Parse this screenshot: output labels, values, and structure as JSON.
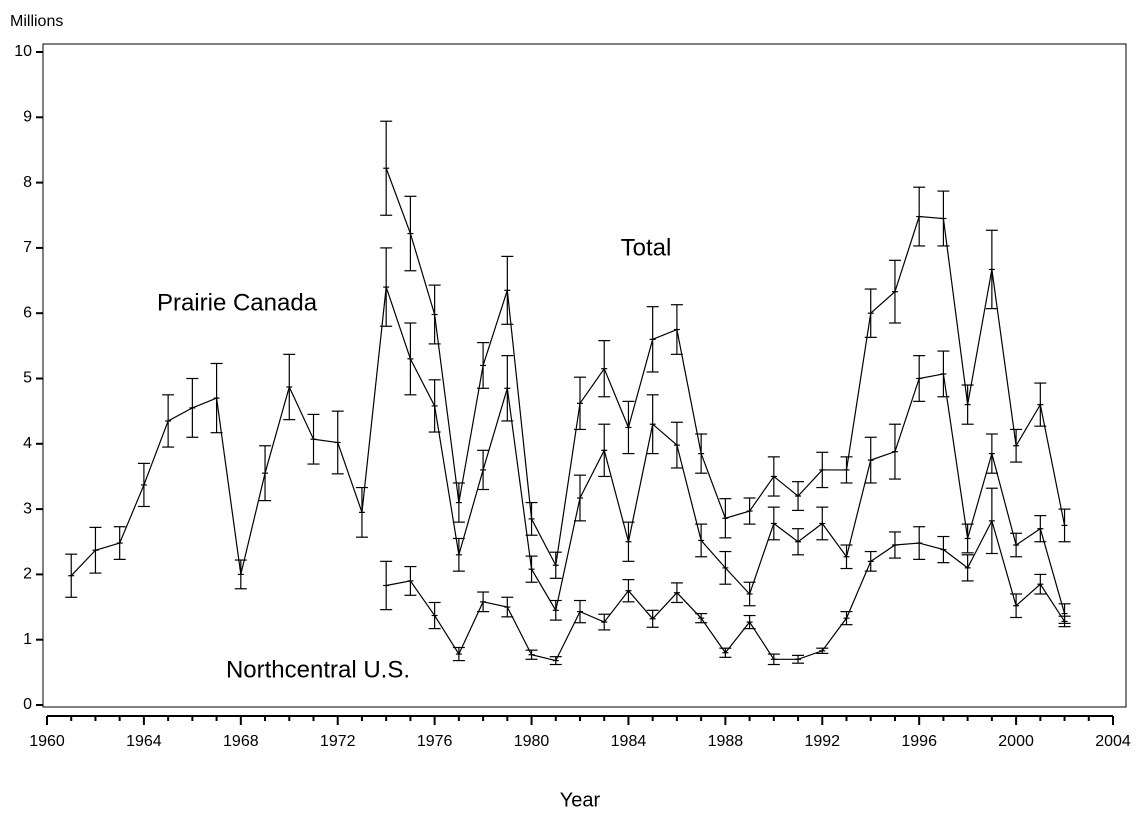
{
  "chart_data": {
    "type": "line",
    "ylabel": "Millions",
    "xlabel": "Year",
    "xlim": [
      1960,
      2004
    ],
    "xticks": [
      1960,
      1964,
      1968,
      1972,
      1976,
      1980,
      1984,
      1988,
      1992,
      1996,
      2000,
      2004
    ],
    "xminorticks": [
      1961,
      1962,
      1963,
      1965,
      1966,
      1967,
      1969,
      1970,
      1971,
      1973,
      1974,
      1975,
      1977,
      1978,
      1979,
      1981,
      1982,
      1983,
      1985,
      1986,
      1987,
      1989,
      1990,
      1991,
      1993,
      1994,
      1995,
      1997,
      1998,
      1999,
      2001,
      2002,
      2003
    ],
    "ylim": [
      0,
      10
    ],
    "yticks": [
      0,
      1,
      2,
      3,
      4,
      5,
      6,
      7,
      8,
      9,
      10
    ],
    "series": [
      {
        "name": "Prairie Canada",
        "color": "#000000",
        "x": [
          1961,
          1962,
          1963,
          1964,
          1965,
          1966,
          1967,
          1968,
          1969,
          1970,
          1971,
          1972,
          1973,
          1974,
          1975,
          1976,
          1977,
          1978,
          1979,
          1980,
          1981,
          1982,
          1983,
          1984,
          1985,
          1986,
          1987,
          1988,
          1989,
          1990,
          1991,
          1992,
          1993,
          1994,
          1995,
          1996,
          1997,
          1998,
          1999,
          2000,
          2001,
          2002
        ],
        "values": [
          1.98,
          2.37,
          2.48,
          3.37,
          4.35,
          4.55,
          4.7,
          2.0,
          3.55,
          4.87,
          4.07,
          4.02,
          2.95,
          6.4,
          5.3,
          4.58,
          2.3,
          3.6,
          4.85,
          2.08,
          1.45,
          3.17,
          3.9,
          2.5,
          4.3,
          3.98,
          2.52,
          2.1,
          1.7,
          2.78,
          2.5,
          2.78,
          2.27,
          3.75,
          3.88,
          5.0,
          5.07,
          2.55,
          3.85,
          2.45,
          2.7,
          1.4
        ],
        "errors": [
          0.33,
          0.35,
          0.25,
          0.33,
          0.4,
          0.45,
          0.53,
          0.22,
          0.42,
          0.5,
          0.38,
          0.48,
          0.38,
          0.6,
          0.55,
          0.4,
          0.25,
          0.3,
          0.5,
          0.2,
          0.15,
          0.35,
          0.4,
          0.3,
          0.45,
          0.35,
          0.25,
          0.25,
          0.18,
          0.25,
          0.2,
          0.25,
          0.18,
          0.35,
          0.42,
          0.35,
          0.35,
          0.22,
          0.3,
          0.18,
          0.2,
          0.15
        ]
      },
      {
        "name": "Total",
        "color": "#000000",
        "x": [
          1974,
          1975,
          1976,
          1977,
          1978,
          1979,
          1980,
          1981,
          1982,
          1983,
          1984,
          1985,
          1986,
          1987,
          1988,
          1989,
          1990,
          1991,
          1992,
          1993,
          1994,
          1995,
          1996,
          1997,
          1998,
          1999,
          2000,
          2001,
          2002
        ],
        "values": [
          8.22,
          7.22,
          5.98,
          3.1,
          5.2,
          6.35,
          2.85,
          2.14,
          4.62,
          5.15,
          4.25,
          5.6,
          5.75,
          3.85,
          2.86,
          2.97,
          3.5,
          3.2,
          3.6,
          3.6,
          6.0,
          6.33,
          7.48,
          7.45,
          4.6,
          6.67,
          3.97,
          4.6,
          2.75
        ],
        "errors": [
          0.72,
          0.57,
          0.45,
          0.3,
          0.35,
          0.52,
          0.25,
          0.2,
          0.4,
          0.43,
          0.4,
          0.5,
          0.38,
          0.3,
          0.3,
          0.2,
          0.3,
          0.22,
          0.27,
          0.2,
          0.37,
          0.48,
          0.45,
          0.42,
          0.3,
          0.6,
          0.25,
          0.33,
          0.25
        ]
      },
      {
        "name": "Northcentral U.S.",
        "color": "#000000",
        "x": [
          1974,
          1975,
          1976,
          1977,
          1978,
          1979,
          1980,
          1981,
          1982,
          1983,
          1984,
          1985,
          1986,
          1987,
          1988,
          1989,
          1990,
          1991,
          1992,
          1993,
          1994,
          1995,
          1996,
          1997,
          1998,
          1999,
          2000,
          2001,
          2002
        ],
        "values": [
          1.83,
          1.9,
          1.37,
          0.78,
          1.58,
          1.5,
          0.77,
          0.68,
          1.43,
          1.27,
          1.75,
          1.32,
          1.72,
          1.33,
          0.8,
          1.27,
          0.7,
          0.7,
          0.83,
          1.33,
          2.2,
          2.45,
          2.48,
          2.38,
          2.1,
          2.82,
          1.52,
          1.85,
          1.28
        ],
        "errors": [
          0.37,
          0.22,
          0.2,
          0.1,
          0.15,
          0.15,
          0.07,
          0.06,
          0.17,
          0.12,
          0.17,
          0.13,
          0.15,
          0.07,
          0.07,
          0.1,
          0.08,
          0.06,
          0.04,
          0.1,
          0.15,
          0.2,
          0.25,
          0.2,
          0.2,
          0.5,
          0.18,
          0.15,
          0.08
        ]
      }
    ]
  }
}
